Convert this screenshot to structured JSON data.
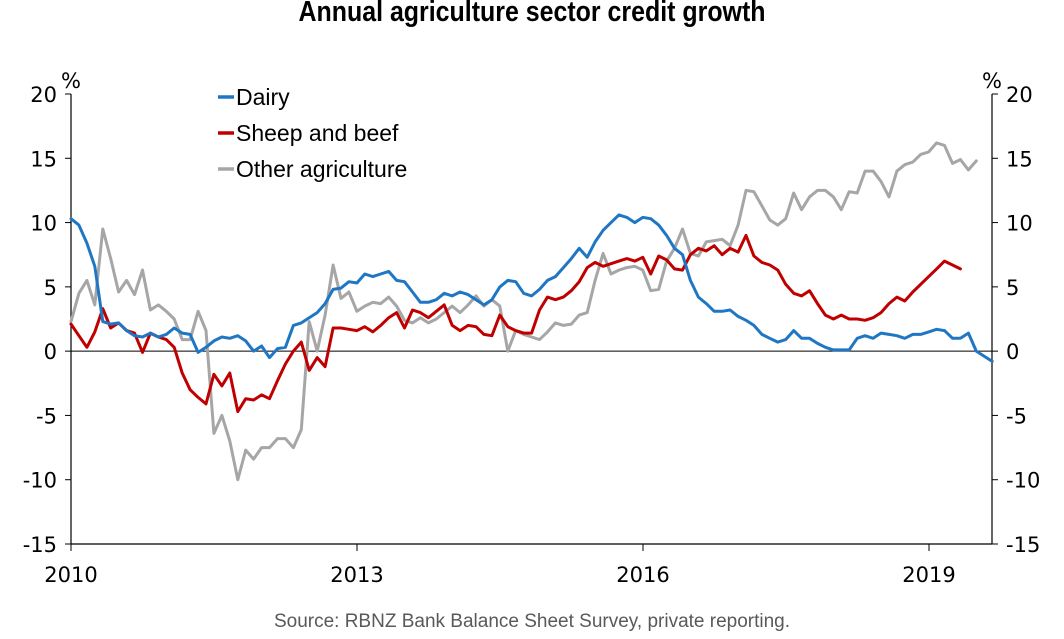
{
  "chart_data": {
    "type": "line",
    "title": "Annual agriculture sector credit growth",
    "source": "Source: RBNZ Bank Balance Sheet Survey, private reporting.",
    "ylabel_left": "%",
    "ylabel_right": "%",
    "ylim": [
      -15,
      20
    ],
    "yticks": [
      20,
      15,
      10,
      5,
      0,
      -5,
      -10,
      -15
    ],
    "xlim": [
      2010,
      2019.67
    ],
    "xticks": [
      2010,
      2013,
      2016,
      2019
    ],
    "xtick_labels": [
      "2010",
      "2013",
      "2016",
      "2019"
    ],
    "legend_placement": "top-left",
    "grid": false,
    "series": [
      {
        "name": "Dairy",
        "color": "#1f77c4",
        "start": 2010.0,
        "step": 0.0833,
        "values": [
          10.3,
          9.8,
          8.4,
          6.6,
          2.3,
          2.1,
          2.2,
          1.6,
          1.2,
          1.1,
          1.4,
          1.1,
          1.3,
          1.8,
          1.4,
          1.3,
          -0.1,
          0.3,
          0.8,
          1.1,
          1.0,
          1.2,
          0.8,
          0.0,
          0.4,
          -0.5,
          0.2,
          0.3,
          2.0,
          2.2,
          2.6,
          3.0,
          3.7,
          4.8,
          4.9,
          5.4,
          5.3,
          6.0,
          5.8,
          6.0,
          6.2,
          5.5,
          5.4,
          4.6,
          3.8,
          3.8,
          4.0,
          4.5,
          4.3,
          4.6,
          4.4,
          4.0,
          3.6,
          4.0,
          5.0,
          5.5,
          5.4,
          4.5,
          4.3,
          4.8,
          5.5,
          5.8,
          6.5,
          7.2,
          8.0,
          7.3,
          8.5,
          9.4,
          10.0,
          10.6,
          10.4,
          10.0,
          10.4,
          10.3,
          9.8,
          9.0,
          8.0,
          7.5,
          5.5,
          4.2,
          3.7,
          3.1,
          3.1,
          3.2,
          2.7,
          2.4,
          2.0,
          1.3,
          1.0,
          0.7,
          0.9,
          1.6,
          1.0,
          1.0,
          0.6,
          0.3,
          0.1,
          0.1,
          0.1,
          1.0,
          1.2,
          1.0,
          1.4,
          1.3,
          1.2,
          1.0,
          1.3,
          1.3,
          1.5,
          1.7,
          1.6,
          1.0,
          1.0,
          1.4,
          0.0,
          -0.4,
          -0.8
        ]
      },
      {
        "name": "Sheep and beef",
        "color": "#c00000",
        "start": 2010.0,
        "step": 0.0833,
        "values": [
          2.1,
          1.2,
          0.3,
          1.5,
          3.3,
          1.8,
          2.2,
          1.6,
          1.4,
          -0.1,
          1.4,
          1.1,
          0.9,
          0.3,
          -1.7,
          -3.0,
          -3.6,
          -4.1,
          -1.8,
          -2.7,
          -1.7,
          -4.7,
          -3.7,
          -3.8,
          -3.4,
          -3.7,
          -2.3,
          -1.0,
          0.0,
          0.7,
          -1.5,
          -0.5,
          -1.2,
          1.8,
          1.8,
          1.7,
          1.6,
          1.9,
          1.5,
          2.0,
          2.6,
          3.0,
          1.8,
          3.2,
          3.0,
          2.6,
          3.1,
          3.6,
          2.0,
          1.6,
          2.0,
          1.9,
          1.3,
          1.2,
          2.8,
          1.9,
          1.6,
          1.4,
          1.4,
          3.2,
          4.2,
          4.0,
          4.2,
          4.7,
          5.4,
          6.5,
          6.9,
          6.6,
          6.8,
          7.0,
          7.2,
          7.0,
          7.3,
          6.0,
          7.4,
          7.1,
          6.4,
          6.3,
          7.5,
          8.0,
          7.8,
          8.2,
          7.5,
          8.0,
          7.7,
          9.0,
          7.4,
          6.9,
          6.7,
          6.3,
          5.2,
          4.5,
          4.3,
          4.7,
          3.7,
          2.8,
          2.5,
          2.8,
          2.5,
          2.5,
          2.4,
          2.6,
          3.0,
          3.7,
          4.2,
          3.9,
          4.6,
          5.2,
          5.8,
          6.4,
          7.0,
          6.7,
          6.4
        ]
      },
      {
        "name": "Other agriculture",
        "color": "#a6a6a6",
        "start": 2010.0,
        "step": 0.0833,
        "values": [
          2.3,
          4.5,
          5.5,
          3.6,
          9.5,
          7.2,
          4.6,
          5.5,
          4.4,
          6.3,
          3.2,
          3.6,
          3.1,
          2.5,
          0.9,
          0.9,
          3.1,
          1.6,
          -6.4,
          -5.0,
          -7.0,
          -10.0,
          -7.7,
          -8.4,
          -7.5,
          -7.5,
          -6.8,
          -6.8,
          -7.5,
          -6.1,
          2.3,
          0.0,
          2.8,
          6.7,
          4.1,
          4.6,
          3.1,
          3.5,
          3.8,
          3.7,
          4.2,
          3.5,
          2.4,
          2.2,
          2.6,
          2.2,
          2.5,
          3.0,
          3.5,
          3.0,
          3.6,
          4.3,
          3.5,
          4.0,
          3.5,
          0.0,
          1.6,
          1.3,
          1.1,
          0.9,
          1.5,
          2.2,
          2.0,
          2.1,
          2.8,
          3.0,
          5.5,
          7.6,
          6.0,
          6.3,
          6.5,
          6.6,
          6.3,
          4.7,
          4.8,
          7.0,
          8.0,
          9.5,
          7.6,
          7.4,
          8.5,
          8.6,
          8.7,
          8.2,
          9.8,
          12.5,
          12.4,
          11.3,
          10.2,
          9.8,
          10.3,
          12.3,
          11.0,
          12.0,
          12.5,
          12.5,
          12.0,
          11.0,
          12.4,
          12.3,
          14.0,
          14.0,
          13.2,
          12.0,
          14.0,
          14.5,
          14.7,
          15.3,
          15.5,
          16.2,
          16.0,
          14.6,
          14.9,
          14.1,
          14.8
        ]
      }
    ]
  }
}
